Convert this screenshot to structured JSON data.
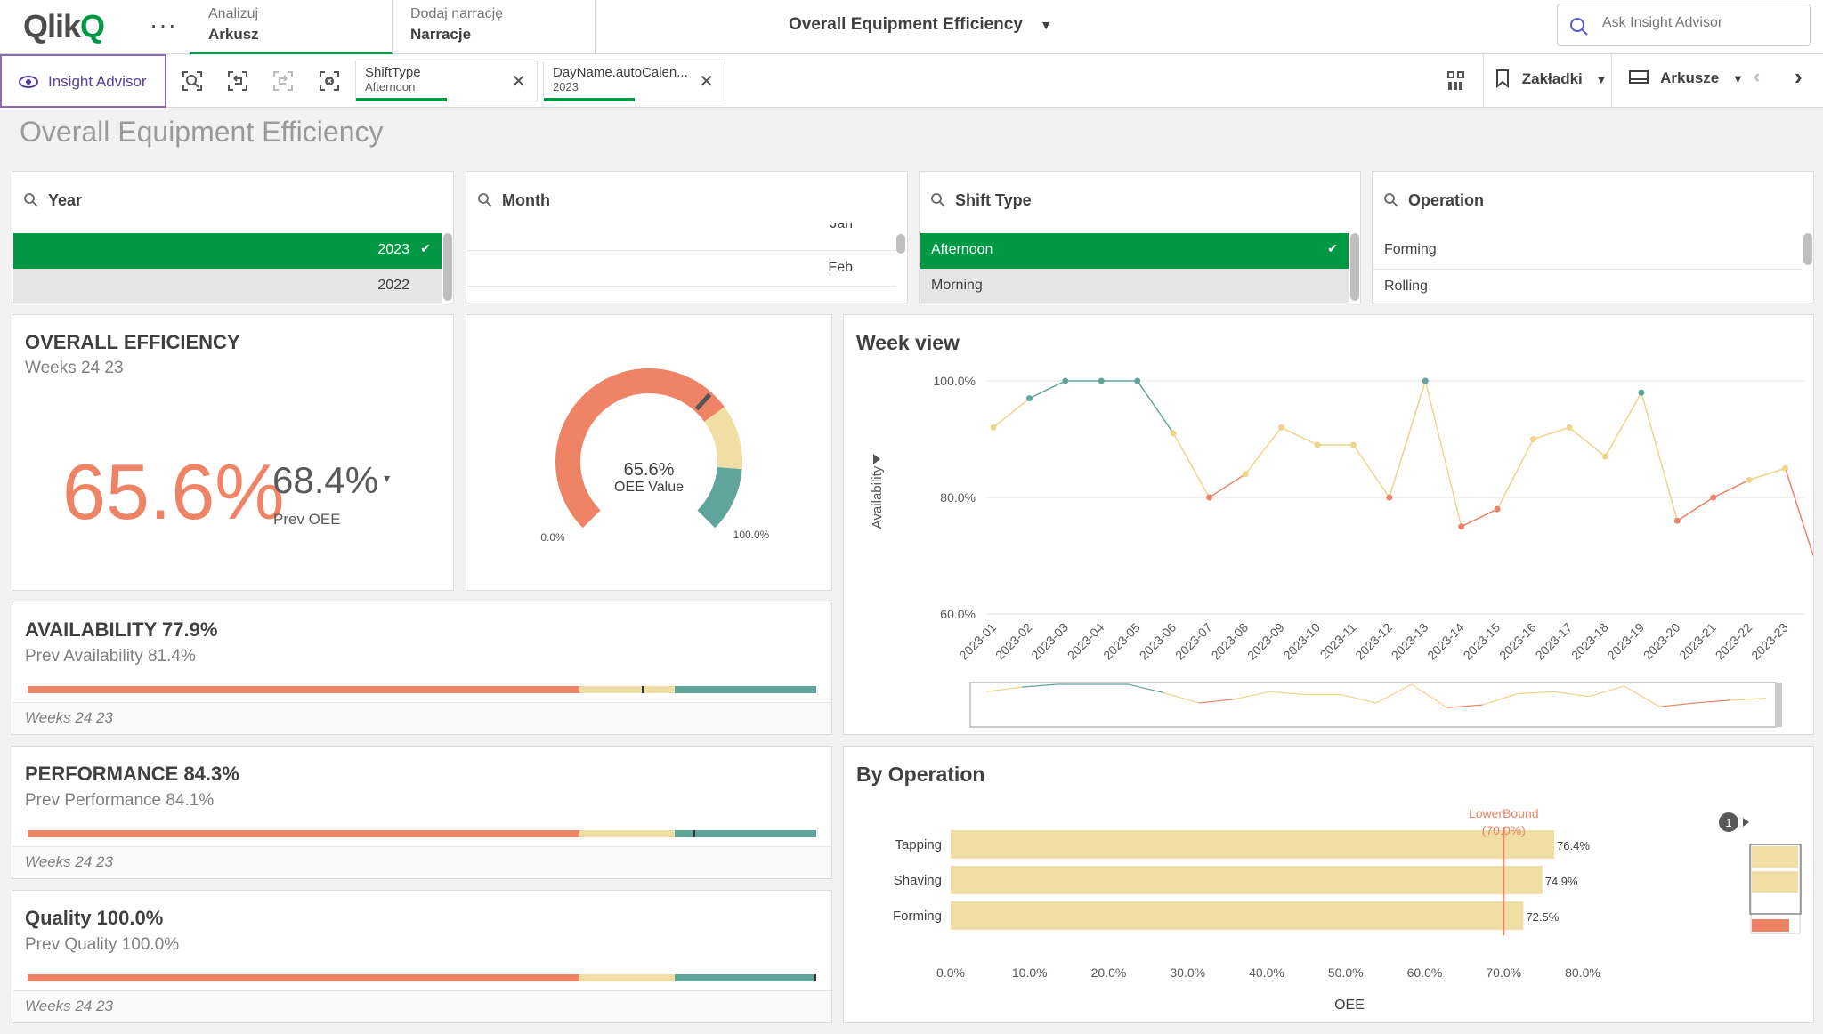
{
  "app": {
    "logo_text": "Qlik",
    "logo_q": "Q",
    "menu_dots": "···",
    "tabs": [
      {
        "small": "Analizuj",
        "big": "Arkusz"
      },
      {
        "small": "Dodaj narrację",
        "big": "Narracje"
      }
    ],
    "sheet_title": "Overall Equipment Efficiency",
    "search_placeholder": "Ask Insight Advisor"
  },
  "toolbar": {
    "insight_advisor": "Insight Advisor",
    "selections": [
      {
        "field": "ShiftType",
        "value": "Afternoon"
      },
      {
        "field": "DayName.autoCalen...",
        "value": "2023"
      }
    ],
    "bookmarks": "Zakładki",
    "sheets": "Arkusze"
  },
  "page_title": "Overall Equipment Efficiency",
  "filters": {
    "year": {
      "title": "Year",
      "rows": [
        "2023",
        "2022"
      ]
    },
    "month": {
      "title": "Month",
      "rows": [
        "Jan",
        "Feb"
      ]
    },
    "shift": {
      "title": "Shift Type",
      "rows": [
        "Afternoon",
        "Morning"
      ]
    },
    "operation": {
      "title": "Operation",
      "rows": [
        "Forming",
        "Rolling"
      ]
    }
  },
  "overall": {
    "title": "OVERALL EFFICIENCY",
    "subtitle": "Weeks 24 23",
    "value": "65.6%",
    "prev_value": "68.4%",
    "prev_label": "Prev OEE"
  },
  "gauge": {
    "value_text": "65.6%",
    "label": "OEE Value",
    "min_label": "0.0%",
    "max_label": "100.0%",
    "value": 0.656,
    "colors": {
      "red": "#ee8366",
      "yellow": "#f0dea4",
      "teal": "#5fa59b"
    }
  },
  "kpis": [
    {
      "title": "AVAILABILITY 77.9%",
      "prev": "Prev Availability 81.4%",
      "footer": "Weeks 24 23",
      "marker": 0.779
    },
    {
      "title": "PERFORMANCE 84.3%",
      "prev": "Prev Performance 84.1%",
      "footer": "Weeks 24 23",
      "marker": 0.843
    },
    {
      "title": "Quality 100.0%",
      "prev": "Prev Quality 100.0%",
      "footer": "Weeks 24 23",
      "marker": 1.0
    }
  ],
  "chart_data": [
    {
      "type": "line",
      "title": "Week view",
      "ylabel": "Availability",
      "xlabel": "",
      "ylim": [
        60,
        100
      ],
      "yticks": [
        "100.0%",
        "80.0%",
        "60.0%"
      ],
      "categories": [
        "2023-01",
        "2023-02",
        "2023-03",
        "2023-04",
        "2023-05",
        "2023-06",
        "2023-07",
        "2023-08",
        "2023-09",
        "2023-10",
        "2023-11",
        "2023-12",
        "2023-13",
        "2023-14",
        "2023-15",
        "2023-16",
        "2023-17",
        "2023-18",
        "2023-19",
        "2023-20",
        "2023-21",
        "2023-22",
        "2023-23"
      ],
      "series": [
        {
          "values": [
            92,
            97,
            100,
            100,
            100,
            91,
            80,
            84,
            92,
            89,
            89,
            80,
            100,
            75,
            78,
            90,
            92,
            87,
            98,
            76,
            80,
            83,
            85
          ]
        }
      ]
    },
    {
      "type": "bar",
      "title": "By Operation",
      "xlabel": "OEE",
      "orientation": "horizontal",
      "categories": [
        "Tapping",
        "Shaving",
        "Forming"
      ],
      "values": [
        76.4,
        74.9,
        72.5
      ],
      "value_labels": [
        "76.4%",
        "74.9%",
        "72.5%"
      ],
      "xlim": [
        0,
        80
      ],
      "xticks": [
        "0.0%",
        "10.0%",
        "20.0%",
        "30.0%",
        "40.0%",
        "50.0%",
        "60.0%",
        "70.0%",
        "80.0%"
      ],
      "reference_line": {
        "label": "LowerBound",
        "value_label": "(70.0%)",
        "value": 70
      },
      "badge": "1"
    }
  ]
}
